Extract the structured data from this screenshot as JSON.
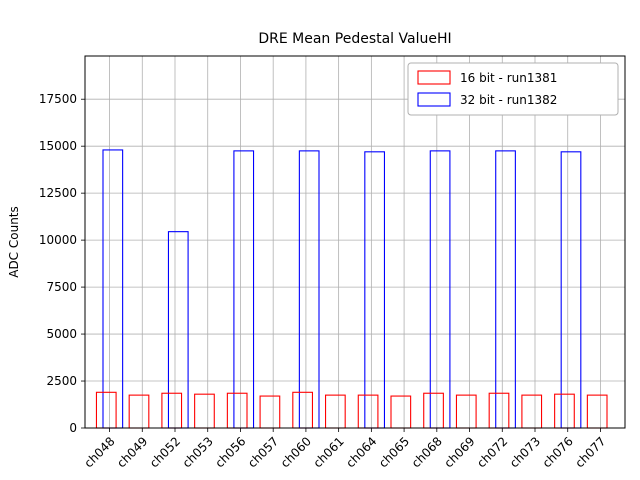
{
  "chart_data": {
    "type": "bar",
    "title": "DRE Mean Pedestal ValueHI",
    "xlabel": "",
    "ylabel": "ADC Counts",
    "categories": [
      "ch048",
      "ch049",
      "ch052",
      "ch053",
      "ch056",
      "ch057",
      "ch060",
      "ch061",
      "ch064",
      "ch065",
      "ch068",
      "ch069",
      "ch072",
      "ch073",
      "ch076",
      "ch077"
    ],
    "series": [
      {
        "name": "16 bit - run1381",
        "color": "#ff0000",
        "values": [
          1900,
          1750,
          1850,
          1800,
          1850,
          1700,
          1900,
          1750,
          1750,
          1700,
          1850,
          1750,
          1850,
          1750,
          1800,
          1750
        ]
      },
      {
        "name": "32 bit - run1382",
        "color": "#0000ff",
        "values": [
          14800,
          0,
          10450,
          0,
          14750,
          0,
          14750,
          0,
          14700,
          0,
          14750,
          0,
          14750,
          0,
          14700,
          0
        ]
      }
    ],
    "yticks": [
      0,
      2500,
      5000,
      7500,
      10000,
      12500,
      15000,
      17500
    ],
    "ytick_labels": [
      "0",
      "2500",
      "5000",
      "7500",
      "10000",
      "12500",
      "15000",
      "17500"
    ],
    "ylim": [
      0,
      19800
    ],
    "grid": true,
    "bar_style": "outline",
    "legend_position": "upper right",
    "x_tick_rotation": 45
  }
}
